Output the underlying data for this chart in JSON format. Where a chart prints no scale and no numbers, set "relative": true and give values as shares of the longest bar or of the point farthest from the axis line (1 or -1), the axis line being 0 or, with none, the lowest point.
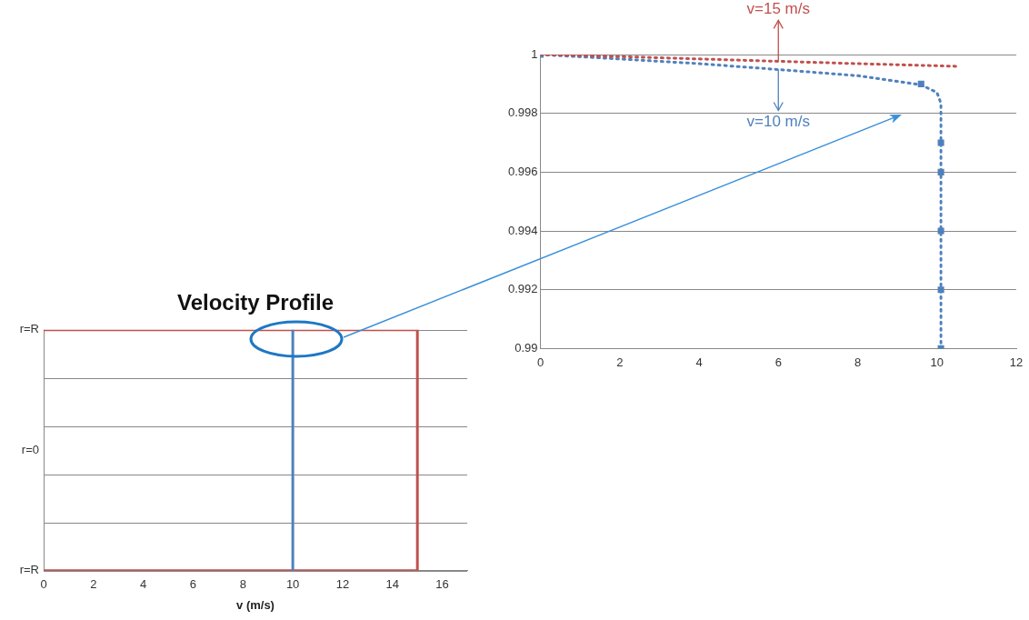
{
  "chart_data": [
    {
      "type": "line",
      "title": "Velocity Profile",
      "xlabel": "v (m/s)",
      "xlim": [
        0,
        17
      ],
      "xticks": [
        0,
        2,
        4,
        6,
        8,
        10,
        12,
        14,
        16
      ],
      "relative": true,
      "annotations": [
        "r=R",
        "r=0",
        "r=R"
      ],
      "grid": "y",
      "legend": false,
      "marker": "none",
      "line_style": "solid",
      "series": [
        {
          "color": "#4f81bd",
          "x": [
            10,
            10
          ],
          "values": [
            0,
            1
          ]
        },
        {
          "color": "#c0504d",
          "x": [
            0,
            15,
            15,
            0
          ],
          "values": [
            1,
            1,
            0,
            0
          ]
        }
      ]
    },
    {
      "type": "line",
      "xlim": [
        0,
        12
      ],
      "xticks": [
        0,
        2,
        4,
        6,
        8,
        10,
        12
      ],
      "ylim": [
        0.99,
        1
      ],
      "yticks": [
        0.99,
        0.992,
        0.994,
        0.996,
        0.998,
        1
      ],
      "grid": "y",
      "legend": false,
      "marker": "none",
      "line_style": "dotted",
      "annotations": [
        {
          "text": "v=15 m/s",
          "x": 6,
          "y": 0.99977
        },
        {
          "text": "v=10 m/s",
          "x": 6,
          "y": 0.99949
        }
      ],
      "series": [
        {
          "color": "#c0504d",
          "x": [
            0,
            2,
            4,
            6,
            8,
            10.5
          ],
          "values": [
            1,
            0.99993,
            0.99985,
            0.99977,
            0.99969,
            0.9996
          ]
        },
        {
          "color": "#4f81bd",
          "x": [
            0,
            2,
            4,
            6,
            8,
            9.6,
            10,
            10.1,
            10.1,
            10.1
          ],
          "values": [
            1,
            0.99985,
            0.99969,
            0.99949,
            0.99928,
            0.99897,
            0.99871,
            0.99834,
            0.997,
            0.99
          ]
        },
        {
          "type": "scatter",
          "color": "#4f81bd",
          "marker": "square",
          "x": [
            0,
            9.6,
            10.1,
            10.1,
            10.1,
            10.1,
            10.1
          ],
          "values": [
            1,
            0.999,
            0.997,
            0.996,
            0.994,
            0.992,
            0.99
          ]
        }
      ]
    }
  ]
}
